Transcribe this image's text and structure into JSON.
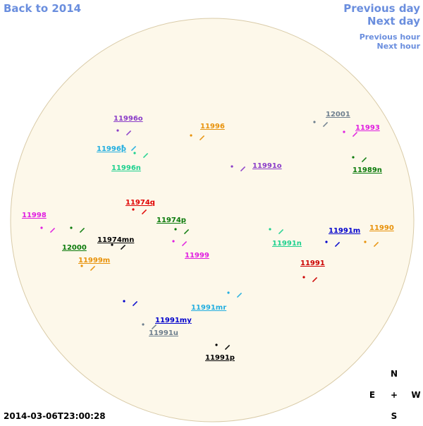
{
  "nav": {
    "back": "Back to 2014",
    "previous_day": "Previous day",
    "next_day": "Next day",
    "previous_hour": "Previous hour",
    "next_hour": "Next hour"
  },
  "timestamp": "2014-03-06T23:00:28",
  "compass": {
    "north": "N",
    "east": "E",
    "center": "+",
    "west": "W",
    "south": "S"
  },
  "regions": [
    {
      "label": "11996o",
      "color": "#8a3cc8"
    },
    {
      "label": "11996",
      "color": "#e8920a"
    },
    {
      "label": "11996p",
      "color": "#22aee0"
    },
    {
      "label": "11996n",
      "color": "#1fd18f"
    },
    {
      "label": "12001",
      "color": "#6e7f8e"
    },
    {
      "label": "11993",
      "color": "#e01ee0"
    },
    {
      "label": "11991o",
      "color": "#8a3cc8"
    },
    {
      "label": "11989n",
      "color": "#0a7a0a"
    },
    {
      "label": "11974q",
      "color": "#e00000"
    },
    {
      "label": "11998",
      "color": "#e01ee0"
    },
    {
      "label": "11974p",
      "color": "#0a7a0a"
    },
    {
      "label": "11990",
      "color": "#e8920a"
    },
    {
      "label": "11991m",
      "color": "#0000cc"
    },
    {
      "label": "11974mn",
      "color": "#000000"
    },
    {
      "label": "11991n",
      "color": "#1fd18f"
    },
    {
      "label": "12000",
      "color": "#0a7a0a"
    },
    {
      "label": "11999",
      "color": "#e01ee0"
    },
    {
      "label": "11999m",
      "color": "#e8920a"
    },
    {
      "label": "11991",
      "color": "#cc0000"
    },
    {
      "label": "11991mr",
      "color": "#22aee0"
    },
    {
      "label": "11991my",
      "color": "#0000cc"
    },
    {
      "label": "11991u",
      "color": "#6e7f8e"
    },
    {
      "label": "11991p",
      "color": "#000000"
    }
  ]
}
